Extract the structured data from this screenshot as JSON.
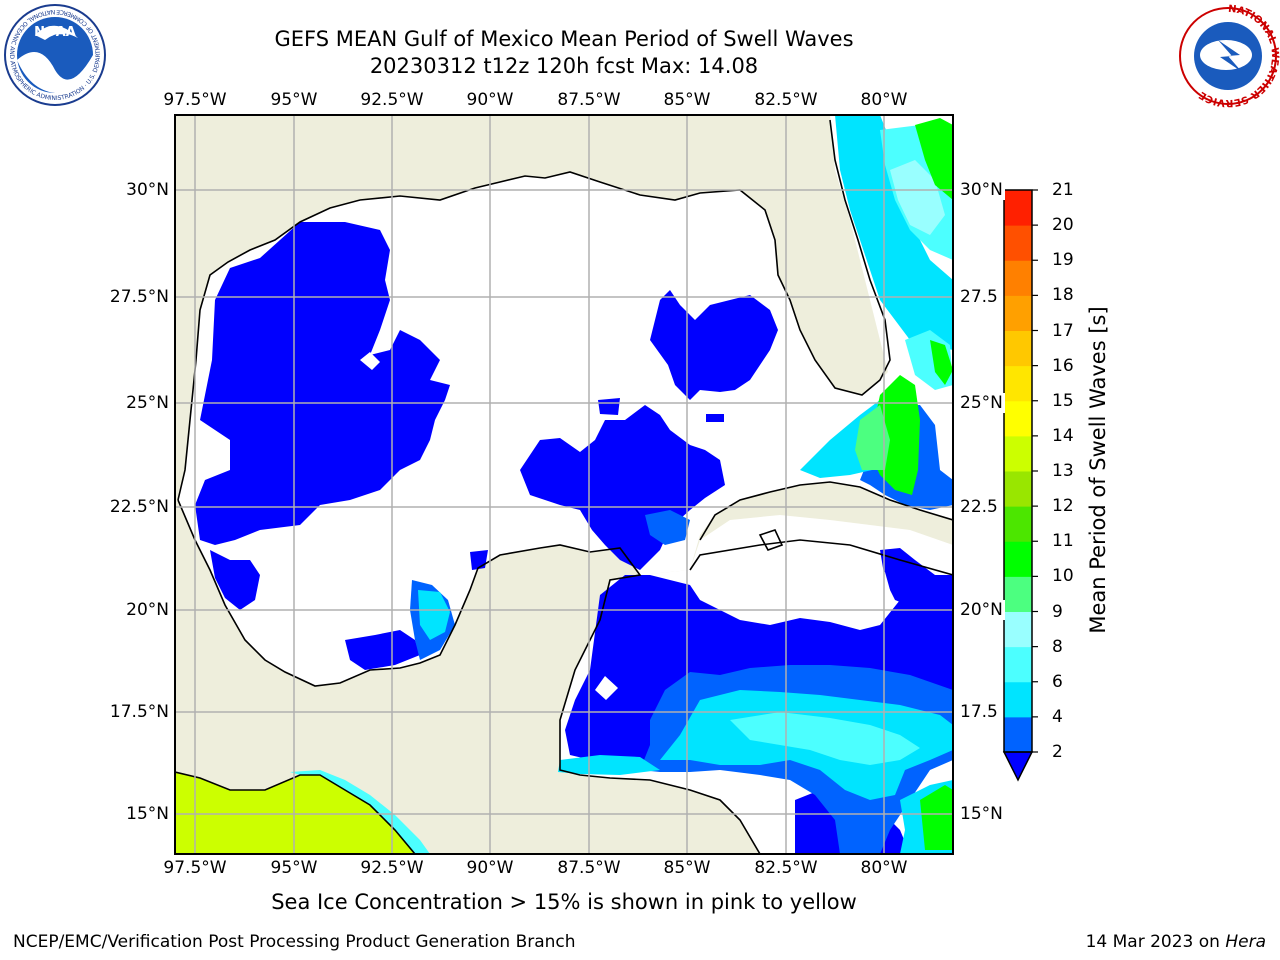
{
  "title": {
    "line1": "GEFS MEAN Gulf of Mexico Mean Period of Swell Waves",
    "line2": "20230312 t12z 120h fcst   Max: 14.08"
  },
  "map": {
    "lon_labels": [
      "97.5°W",
      "95°W",
      "92.5°W",
      "90°W",
      "87.5°W",
      "85°W",
      "82.5°W",
      "80°W"
    ],
    "lat_labels_left": [
      "30°N",
      "27.5°N",
      "25°N",
      "22.5°N",
      "20°N",
      "17.5°N",
      "15°N"
    ],
    "lat_labels_right": [
      "30°N",
      "27.5",
      "25°N",
      "22.5",
      "20°N",
      "17.5",
      "15°N"
    ],
    "colors": {
      "land": "#eeeedc",
      "ocean_missing": "#ffffff",
      "grid": "#b0b0b0"
    }
  },
  "colorbar": {
    "label": "Mean Period of Swell Waves [s]",
    "ticks": [
      "2",
      "4",
      "6",
      "8",
      "9",
      "10",
      "11",
      "12",
      "13",
      "14",
      "15",
      "16",
      "17",
      "18",
      "19",
      "20",
      "21"
    ],
    "colors": [
      "#0063ff",
      "#00e4ff",
      "#4cffff",
      "#99ffff",
      "#4cff80",
      "#00ff00",
      "#4ce600",
      "#99e600",
      "#ccff00",
      "#ffff00",
      "#ffe600",
      "#ffc800",
      "#ffa000",
      "#ff8000",
      "#ff5000",
      "#ff2000"
    ],
    "under_color": "#0000ff"
  },
  "note": "Sea Ice Concentration > 15% is shown in pink to yellow",
  "footer": {
    "left": "NCEP/EMC/Verification Post Processing Product Generation Branch",
    "date": "14 Mar 2023 on",
    "machine": "Hera"
  },
  "logos": {
    "noaa": {
      "text": "NOAA",
      "ring": "NATIONAL OCEANIC AND ATMOSPHERIC ADMINISTRATION · U.S. DEPARTMENT OF COMMERCE"
    },
    "nws": {
      "ring": "NATIONAL WEATHER SERVICE"
    }
  }
}
